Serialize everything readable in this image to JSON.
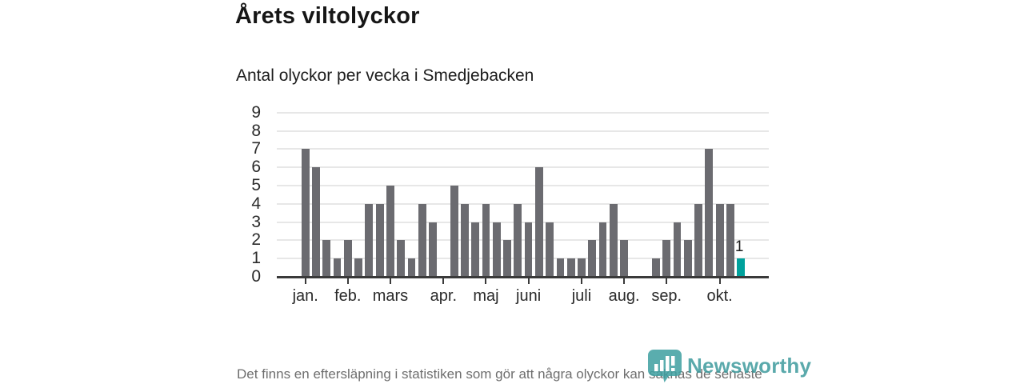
{
  "header": {
    "title": "Årets viltolyckor",
    "subtitle": "Antal olyckor per vecka i Smedjebacken"
  },
  "chart_data": {
    "type": "bar",
    "title": "Årets viltolyckor",
    "subtitle": "Antal olyckor per vecka i Smedjebacken",
    "xlabel": "",
    "ylabel": "",
    "ylim": [
      0,
      9
    ],
    "yticks": [
      0,
      1,
      2,
      3,
      4,
      5,
      6,
      7,
      8,
      9
    ],
    "grid": true,
    "legend": "none",
    "values": [
      7,
      6,
      2,
      1,
      2,
      1,
      4,
      4,
      5,
      2,
      1,
      4,
      3,
      0,
      5,
      4,
      3,
      4,
      3,
      2,
      4,
      3,
      6,
      3,
      1,
      1,
      1,
      2,
      3,
      4,
      2,
      0,
      0,
      1,
      2,
      3,
      2,
      4,
      7,
      4,
      4,
      1
    ],
    "month_ticks": [
      {
        "slot": 0,
        "label": "jan."
      },
      {
        "slot": 4,
        "label": "feb."
      },
      {
        "slot": 8,
        "label": "mars"
      },
      {
        "slot": 13,
        "label": "apr."
      },
      {
        "slot": 17,
        "label": "maj"
      },
      {
        "slot": 21,
        "label": "juni"
      },
      {
        "slot": 26,
        "label": "juli"
      },
      {
        "slot": 30,
        "label": "aug."
      },
      {
        "slot": 34,
        "label": "sep."
      },
      {
        "slot": 39,
        "label": "okt."
      }
    ],
    "bar_color": "#6b6b70",
    "highlight_color": "#00a19c",
    "highlight_index": 41,
    "highlight_label": "1"
  },
  "footer": {
    "note": "Det finns en eftersläpning i statistiken som gör att några olyckor kan saknas de senaste veckorna."
  },
  "branding": {
    "logo_text": "Newsworthy",
    "logo_color": "#3f9c9e"
  }
}
